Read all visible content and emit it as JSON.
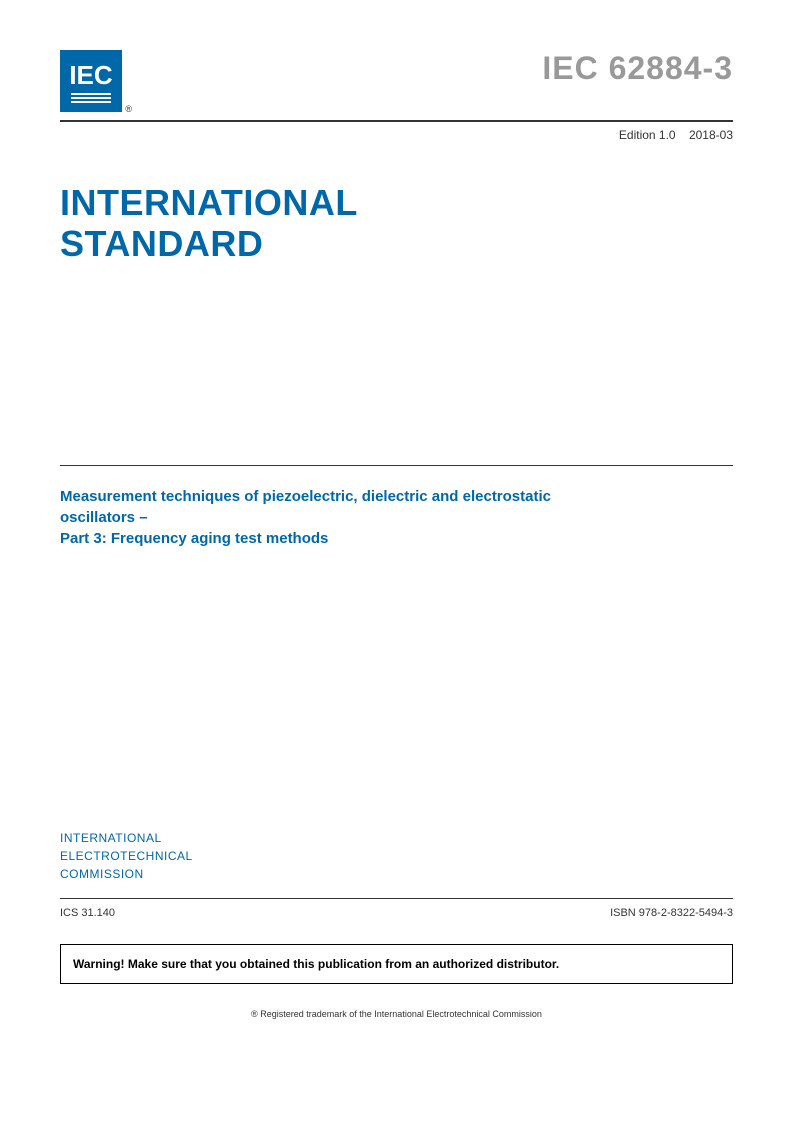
{
  "logo": {
    "text": "IEC",
    "reg_symbol": "®"
  },
  "header": {
    "standard_number": "IEC 62884-3",
    "edition": "Edition 1.0",
    "date": "2018-03"
  },
  "main_title": {
    "line1": "INTERNATIONAL",
    "line2": "STANDARD"
  },
  "subtitle": {
    "line1": "Measurement techniques of piezoelectric, dielectric and electrostatic",
    "line2": "oscillators –",
    "line3": "Part 3: Frequency aging test methods"
  },
  "organization": {
    "line1": "INTERNATIONAL",
    "line2": "ELECTROTECHNICAL",
    "line3": "COMMISSION"
  },
  "footer": {
    "ics": "ICS 31.140",
    "isbn": "ISBN 978-2-8322-5494-3"
  },
  "warning": {
    "text": "Warning! Make sure that you obtained this publication from an authorized distributor."
  },
  "trademark": {
    "text": "® Registered trademark of the International Electrotechnical Commission"
  },
  "colors": {
    "primary_blue": "#0068a9",
    "gray_text": "#999999",
    "body_text": "#333333",
    "white": "#ffffff",
    "black": "#000000"
  }
}
